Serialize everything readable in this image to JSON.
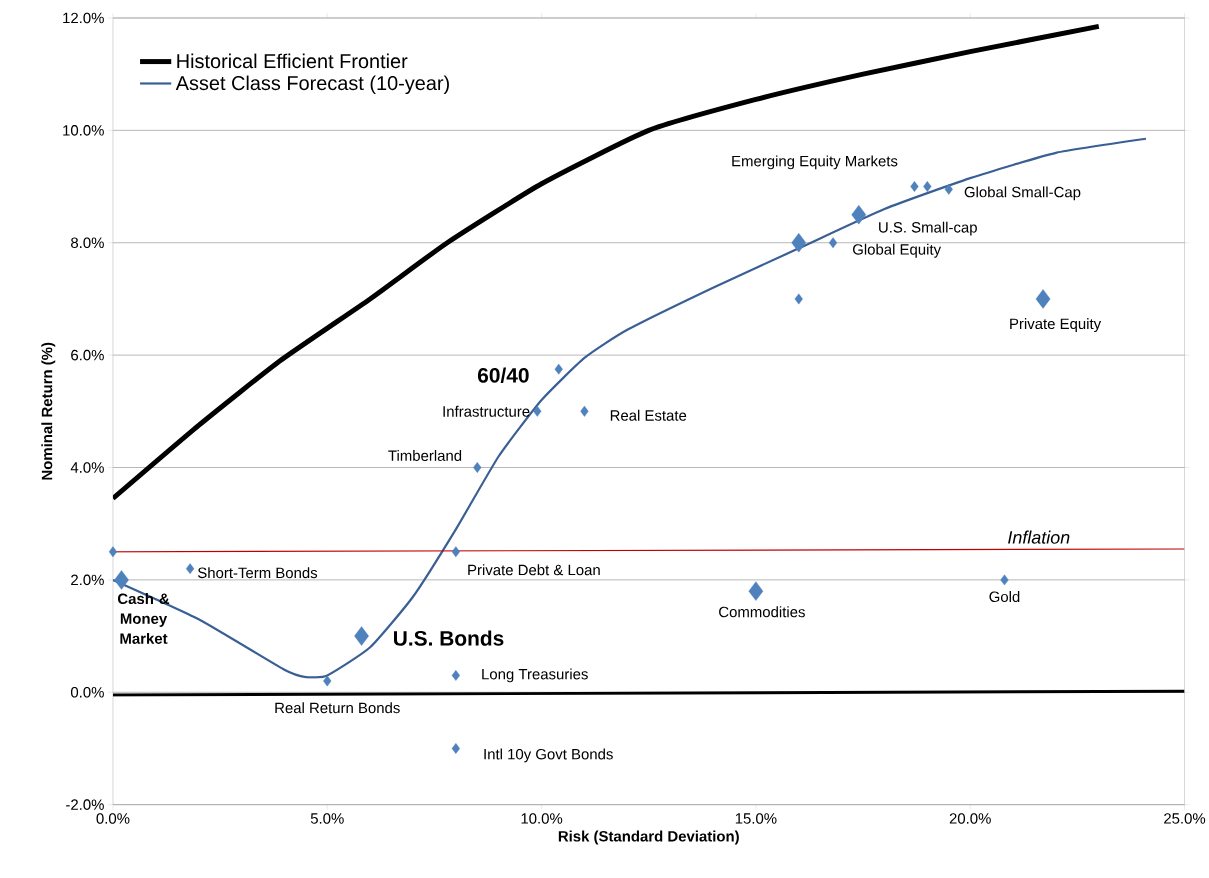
{
  "chart_data": {
    "type": "line",
    "xlabel": "Risk (Standard Deviation)",
    "ylabel": "Nominal Return (%)",
    "xlim": [
      0,
      25
    ],
    "ylim": [
      -2,
      12
    ],
    "xticks": [
      {
        "value": 0,
        "label": "0.0%"
      },
      {
        "value": 5,
        "label": "5.0%"
      },
      {
        "value": 10,
        "label": "10.0%"
      },
      {
        "value": 15,
        "label": "15.0%"
      },
      {
        "value": 20,
        "label": "20.0%"
      },
      {
        "value": 25,
        "label": "25.0%"
      }
    ],
    "yticks": [
      {
        "value": -2,
        "label": "-2.0%"
      },
      {
        "value": 0,
        "label": "0.0%"
      },
      {
        "value": 2,
        "label": "2.0%"
      },
      {
        "value": 4,
        "label": "4.0%"
      },
      {
        "value": 6,
        "label": "6.0%"
      },
      {
        "value": 8,
        "label": "8.0%"
      },
      {
        "value": 10,
        "label": "10.0%"
      },
      {
        "value": 12,
        "label": "12.0%"
      }
    ],
    "grid": "y",
    "legend": "top left",
    "series": [
      {
        "name": "Historical Efficient Frontier",
        "color": "#000000",
        "x": [
          0,
          2,
          3.9,
          6,
          7.8,
          10,
          12.5,
          15,
          17.5,
          20,
          23
        ],
        "values": [
          3.45,
          4.75,
          5.9,
          7.0,
          8.0,
          9.05,
          10.0,
          10.55,
          11.0,
          11.4,
          11.85
        ]
      },
      {
        "name": "Asset Class Forecast (10-year)",
        "color": "#3a5f95",
        "x": [
          0,
          2,
          4,
          4.5,
          5,
          6,
          7,
          8,
          9,
          10,
          11,
          12,
          14,
          16,
          18,
          20,
          22,
          24.1
        ],
        "values": [
          2.0,
          1.3,
          0.4,
          0.27,
          0.3,
          0.8,
          1.7,
          2.9,
          4.2,
          5.2,
          5.95,
          6.45,
          7.2,
          7.9,
          8.6,
          9.15,
          9.6,
          9.85
        ]
      },
      {
        "color": "#000000",
        "x": [
          0,
          25
        ],
        "values": [
          -0.05,
          0.02
        ]
      },
      {
        "color": "#c00000",
        "x": [
          0,
          25
        ],
        "values": [
          2.5,
          2.55
        ]
      },
      {
        "type": "bubble",
        "marker": "diamond",
        "color": "#4f81bd",
        "x": [
          0,
          0.2,
          1.8,
          5.0,
          5.8,
          8.0,
          8.0,
          8.0,
          8.5,
          9.9,
          10.4,
          11.0,
          16.0,
          16.0,
          16.8,
          17.4,
          18.7,
          19.0,
          19.5,
          15.0,
          20.8,
          21.7
        ],
        "values": [
          2.5,
          2.0,
          2.2,
          0.2,
          1.0,
          2.5,
          0.3,
          -1.0,
          4.0,
          5.0,
          5.75,
          5.0,
          7.0,
          8.0,
          8.0,
          8.5,
          9.0,
          9.0,
          8.95,
          1.8,
          2.0,
          7.0
        ],
        "sizes": [
          0.3,
          1,
          0.3,
          0.3,
          1,
          0.3,
          0.3,
          0.3,
          0.3,
          0.3,
          0.3,
          0.3,
          0.3,
          1,
          0.3,
          1,
          0.3,
          0.3,
          0.3,
          1,
          0.3,
          1
        ]
      }
    ],
    "annotations": [
      {
        "text": "Cash & Money Market",
        "x": 0.2,
        "y": 2.0
      },
      {
        "text": "Short-Term Bonds",
        "x": 1.8,
        "y": 2.2
      },
      {
        "text": "Real Return Bonds",
        "x": 5.0,
        "y": 0.2
      },
      {
        "text": "U.S. Bonds",
        "x": 5.8,
        "y": 1.0
      },
      {
        "text": "Private Debt & Loan",
        "x": 8.0,
        "y": 2.5
      },
      {
        "text": "Long Treasuries",
        "x": 8.0,
        "y": 0.3
      },
      {
        "text": "Intl 10y Govt Bonds",
        "x": 8.0,
        "y": -1.0
      },
      {
        "text": "Timberland",
        "x": 8.5,
        "y": 4.0
      },
      {
        "text": "Infrastructure",
        "x": 9.9,
        "y": 5.0
      },
      {
        "text": "60/40",
        "x": 10.4,
        "y": 5.75
      },
      {
        "text": "Real Estate",
        "x": 11.0,
        "y": 5.0
      },
      {
        "text": "Global Equity",
        "x": 16.8,
        "y": 8.0
      },
      {
        "text": "U.S. Small-cap",
        "x": 17.4,
        "y": 8.5
      },
      {
        "text": "Emerging  Equity Markets",
        "x": 18.7,
        "y": 9.0
      },
      {
        "text": "Global Small-Cap",
        "x": 19.5,
        "y": 8.95
      },
      {
        "text": "Commodities",
        "x": 15.0,
        "y": 1.8
      },
      {
        "text": "Gold",
        "x": 20.8,
        "y": 2.0
      },
      {
        "text": "Private Equity",
        "x": 21.7,
        "y": 7.0
      },
      {
        "text": "Inflation",
        "x": 21.6,
        "y": 2.55
      }
    ]
  }
}
